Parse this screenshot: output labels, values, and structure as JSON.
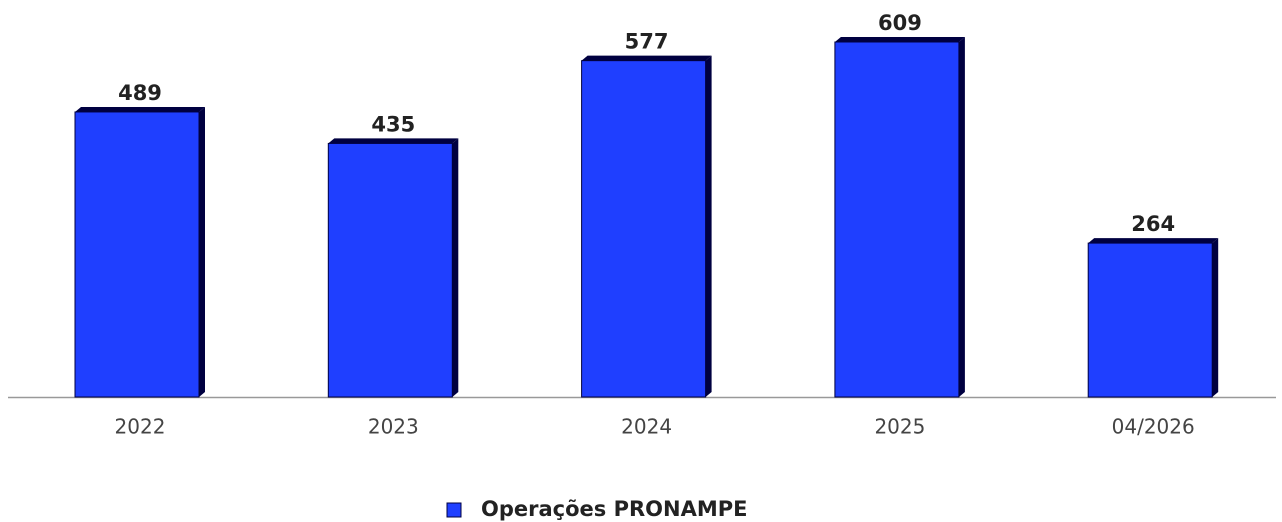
{
  "chart_data": {
    "type": "bar",
    "categories": [
      "2022",
      "2023",
      "2024",
      "2025",
      "04/2026"
    ],
    "series": [
      {
        "name": "Operações PRONAMPE",
        "color": "#1f3fff",
        "values": [
          489,
          435,
          577,
          609,
          264
        ]
      }
    ]
  }
}
